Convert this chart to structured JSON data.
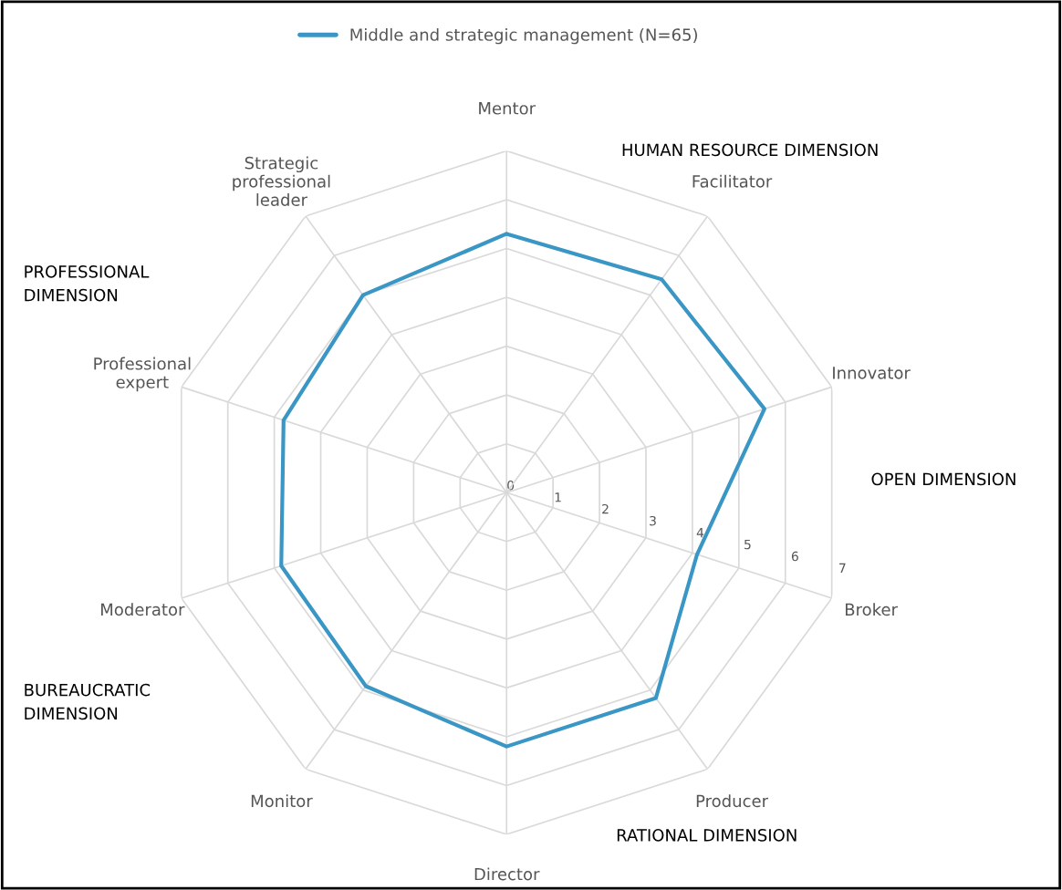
{
  "chart_data": {
    "type": "radar",
    "categories": [
      "Mentor",
      "Facilitator",
      "Innovator",
      "Broker",
      "Producer",
      "Director",
      "Monitor",
      "Moderator",
      "Professional\nexpert",
      "Strategic\nprofessional\nleader"
    ],
    "series": [
      {
        "name": "Middle and strategic management (N=65)",
        "color": "#3a96c4",
        "values": [
          5.3,
          5.4,
          5.55,
          4.1,
          5.2,
          5.2,
          4.9,
          4.85,
          4.8,
          5.0
        ]
      }
    ],
    "ylim": [
      0,
      7
    ],
    "yticks": [
      0,
      1,
      2,
      3,
      4,
      5,
      6,
      7
    ],
    "annotations": [
      "HUMAN RESOURCE DIMENSION",
      "OPEN DIMENSION",
      "RATIONAL DIMENSION",
      "BUREAUCRATIC\nDIMENSION",
      "PROFESSIONAL\nDIMENSION"
    ],
    "legend": "top",
    "grid": true,
    "marker": "none",
    "line_style": "solid"
  }
}
